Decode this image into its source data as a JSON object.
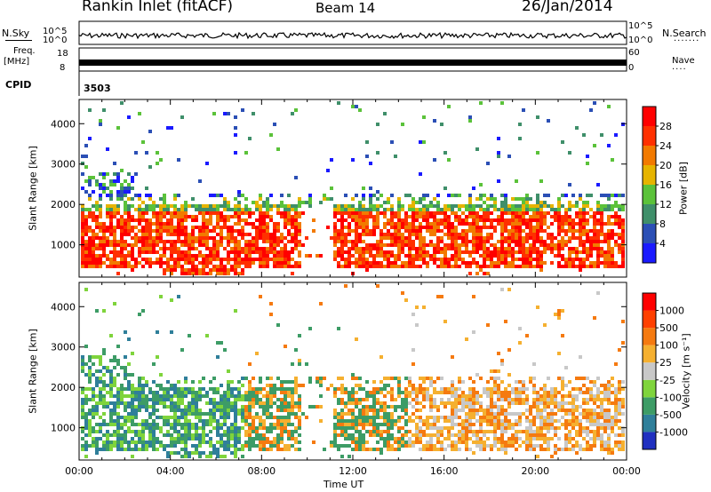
{
  "header": {
    "title": "Rankin Inlet (fitACF)",
    "beam": "Beam 14",
    "date": "26/Jan/2014"
  },
  "noise_panel": {
    "left_label": "N.Sky",
    "right_label": "N.Search",
    "right_dots": "·······",
    "left_ticks": [
      "10^5",
      "10^0"
    ],
    "right_ticks": [
      "10^5",
      "10^0"
    ]
  },
  "freq_panel": {
    "label_line1": "Freq.",
    "label_line2": "[MHz]",
    "left_ticks": [
      "18",
      "8"
    ],
    "right_ticks": [
      "60",
      "0"
    ],
    "right_label": "Nave",
    "right_dots": "····"
  },
  "cpid": {
    "label": "CPID",
    "value": "3503"
  },
  "chart_data": [
    {
      "type": "heatmap",
      "name": "power",
      "ylabel": "Slant Range [km]",
      "ylim": [
        200,
        4600
      ],
      "y_ticks": [
        "1000",
        "2000",
        "3000",
        "4000"
      ],
      "colorbar": {
        "label": "Power [dB]",
        "ticks": [
          "4",
          "8",
          "12",
          "16",
          "20",
          "24",
          "28"
        ],
        "colors": [
          "#1a1aff",
          "#2b4fb5",
          "#3f8f6a",
          "#5bc23a",
          "#e6b400",
          "#f27a00",
          "#ff3000",
          "#ff0000"
        ]
      }
    },
    {
      "type": "heatmap",
      "name": "velocity",
      "ylabel": "Slant Range [km]",
      "xlabel": "Time UT",
      "ylim": [
        200,
        4600
      ],
      "y_ticks": [
        "1000",
        "2000",
        "3000",
        "4000"
      ],
      "x_ticks": [
        "00:00",
        "04:00",
        "08:00",
        "12:00",
        "16:00",
        "20:00",
        "00:00"
      ],
      "colorbar": {
        "label": "Velocity [m s⁻¹]",
        "ticks": [
          "1000",
          "500",
          "100",
          "25",
          "-25",
          "-100",
          "-500",
          "-1000"
        ],
        "colors": [
          "#2030c0",
          "#2f7f9a",
          "#3d9c66",
          "#7fd43c",
          "#c8c8c8",
          "#f5b030",
          "#f57a10",
          "#ff4000",
          "#ff0000"
        ]
      }
    }
  ]
}
